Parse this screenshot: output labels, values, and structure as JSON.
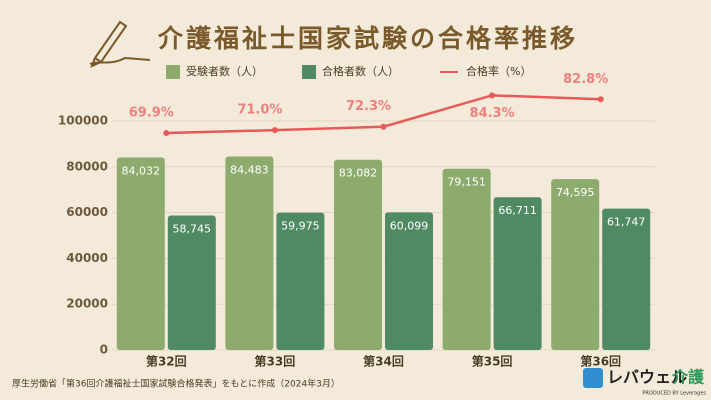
{
  "chart_data": {
    "type": "bar",
    "title": "介護福祉士国家試験の合格率推移",
    "categories": [
      "第32回",
      "第33回",
      "第34回",
      "第35回",
      "第36回"
    ],
    "series": [
      {
        "name": "受験者数（人）",
        "color": "#8dab6c",
        "values": [
          84032,
          84483,
          83082,
          79151,
          74595
        ],
        "value_labels": [
          "84,032",
          "84,483",
          "83,082",
          "79,151",
          "74,595"
        ]
      },
      {
        "name": "合格者数（人）",
        "color": "#4f8a62",
        "values": [
          58745,
          59975,
          60099,
          66711,
          61747
        ],
        "value_labels": [
          "58,745",
          "59,975",
          "60,099",
          "66,711",
          "61,747"
        ]
      },
      {
        "name": "合格率（%）",
        "color": "#e85a5a",
        "type": "line",
        "axis": "y2",
        "values": [
          69.9,
          71.0,
          72.3,
          84.3,
          82.8
        ],
        "value_labels": [
          "69.9%",
          "71.0%",
          "72.3%",
          "84.3%",
          "82.8%"
        ]
      }
    ],
    "ylim": [
      0,
      112000
    ],
    "yticks": [
      0,
      20000,
      40000,
      60000,
      80000,
      100000
    ],
    "y2lim": [
      -13,
      85
    ],
    "grid": true,
    "source": "厚生労働省「第36回介護福祉士国家試験合格発表」をもとに作成（2024年3月）",
    "logo": {
      "brand": "レバウェル",
      "suffix": "介護",
      "sub": "PRODUCED BY Leverages"
    }
  }
}
